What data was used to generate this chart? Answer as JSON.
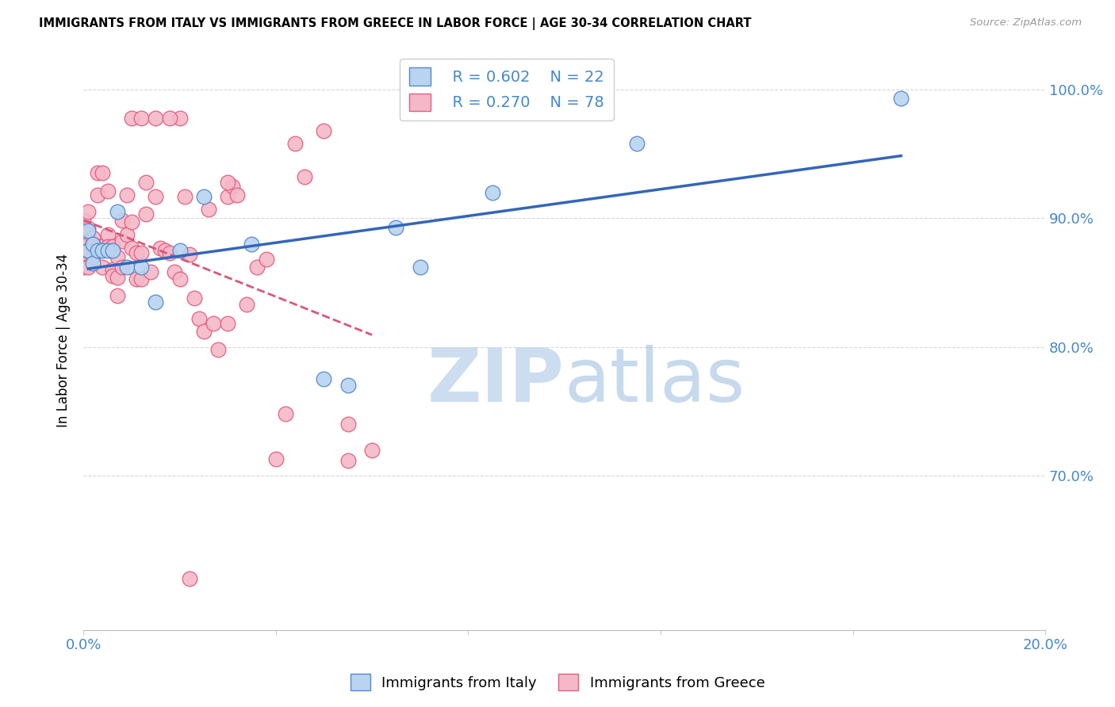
{
  "title": "IMMIGRANTS FROM ITALY VS IMMIGRANTS FROM GREECE IN LABOR FORCE | AGE 30-34 CORRELATION CHART",
  "source": "Source: ZipAtlas.com",
  "ylabel": "In Labor Force | Age 30-34",
  "x_min": 0.0,
  "x_max": 0.2,
  "y_min": 0.58,
  "y_max": 1.03,
  "y_ticks": [
    0.7,
    0.8,
    0.9,
    1.0
  ],
  "y_tick_labels": [
    "70.0%",
    "80.0%",
    "90.0%",
    "100.0%"
  ],
  "italy_color": "#b8d4f0",
  "italy_edge_color": "#5588cc",
  "greece_color": "#f5b8c8",
  "greece_edge_color": "#e06080",
  "italy_line_color": "#3366bb",
  "greece_line_color": "#dd5577",
  "watermark_zip_color": "#ccddf0",
  "watermark_atlas_color": "#99bbdd",
  "italy_points_x": [
    0.001,
    0.001,
    0.002,
    0.002,
    0.003,
    0.004,
    0.005,
    0.006,
    0.007,
    0.009,
    0.012,
    0.015,
    0.02,
    0.025,
    0.035,
    0.05,
    0.055,
    0.065,
    0.07,
    0.085,
    0.115,
    0.17
  ],
  "italy_points_y": [
    0.875,
    0.89,
    0.865,
    0.88,
    0.875,
    0.875,
    0.875,
    0.875,
    0.905,
    0.862,
    0.862,
    0.835,
    0.875,
    0.917,
    0.88,
    0.775,
    0.77,
    0.893,
    0.862,
    0.92,
    0.958,
    0.993
  ],
  "greece_points_x": [
    0.0,
    0.0,
    0.0,
    0.0,
    0.001,
    0.001,
    0.001,
    0.001,
    0.001,
    0.002,
    0.002,
    0.002,
    0.003,
    0.003,
    0.003,
    0.004,
    0.004,
    0.004,
    0.005,
    0.005,
    0.005,
    0.006,
    0.006,
    0.006,
    0.006,
    0.007,
    0.007,
    0.007,
    0.008,
    0.008,
    0.008,
    0.009,
    0.009,
    0.01,
    0.01,
    0.011,
    0.011,
    0.012,
    0.012,
    0.013,
    0.013,
    0.014,
    0.015,
    0.016,
    0.017,
    0.018,
    0.019,
    0.02,
    0.021,
    0.022,
    0.023,
    0.024,
    0.025,
    0.026,
    0.027,
    0.028,
    0.03,
    0.03,
    0.031,
    0.032,
    0.034,
    0.036,
    0.038,
    0.04,
    0.042,
    0.044,
    0.046,
    0.05,
    0.055,
    0.055,
    0.06,
    0.02,
    0.03,
    0.01,
    0.012,
    0.015,
    0.018,
    0.022
  ],
  "greece_points_y": [
    0.875,
    0.885,
    0.898,
    0.862,
    0.905,
    0.892,
    0.88,
    0.875,
    0.862,
    0.885,
    0.878,
    0.87,
    0.935,
    0.918,
    0.878,
    0.935,
    0.878,
    0.862,
    0.921,
    0.887,
    0.878,
    0.878,
    0.86,
    0.878,
    0.855,
    0.87,
    0.854,
    0.84,
    0.898,
    0.882,
    0.862,
    0.918,
    0.887,
    0.897,
    0.877,
    0.873,
    0.853,
    0.873,
    0.853,
    0.928,
    0.903,
    0.858,
    0.917,
    0.877,
    0.875,
    0.873,
    0.858,
    0.853,
    0.917,
    0.872,
    0.838,
    0.822,
    0.812,
    0.907,
    0.818,
    0.798,
    0.818,
    0.917,
    0.925,
    0.918,
    0.833,
    0.862,
    0.868,
    0.713,
    0.748,
    0.958,
    0.932,
    0.968,
    0.712,
    0.74,
    0.72,
    0.978,
    0.928,
    0.978,
    0.978,
    0.978,
    0.978,
    0.62
  ]
}
